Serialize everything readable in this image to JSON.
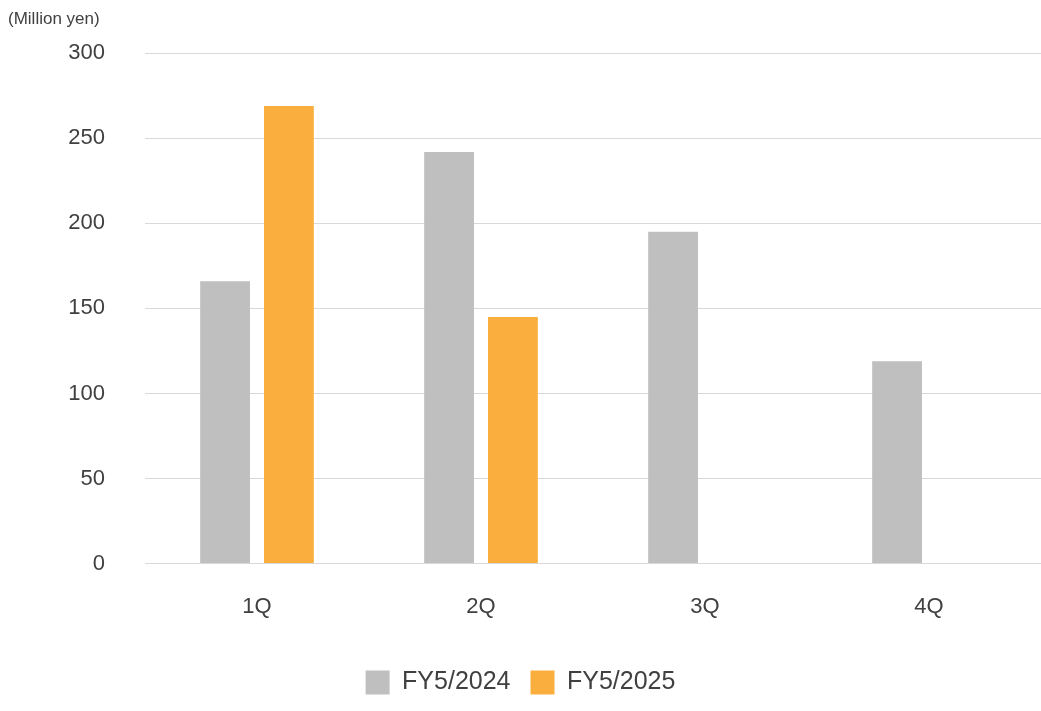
{
  "chart_data": {
    "type": "bar",
    "ylabel": "(Million yen)",
    "categories": [
      "1Q",
      "2Q",
      "3Q",
      "4Q"
    ],
    "series": [
      {
        "name": "FY5/2024",
        "color": "#bfbfbf",
        "values": [
          166,
          242,
          195,
          119
        ]
      },
      {
        "name": "FY5/2025",
        "color": "#f9ae3e",
        "values": [
          269,
          145,
          null,
          null
        ]
      }
    ],
    "ylim": [
      0,
      300
    ],
    "yticks": [
      0,
      50,
      100,
      150,
      200,
      250,
      300
    ],
    "grid": "y",
    "legend": "bottom"
  }
}
